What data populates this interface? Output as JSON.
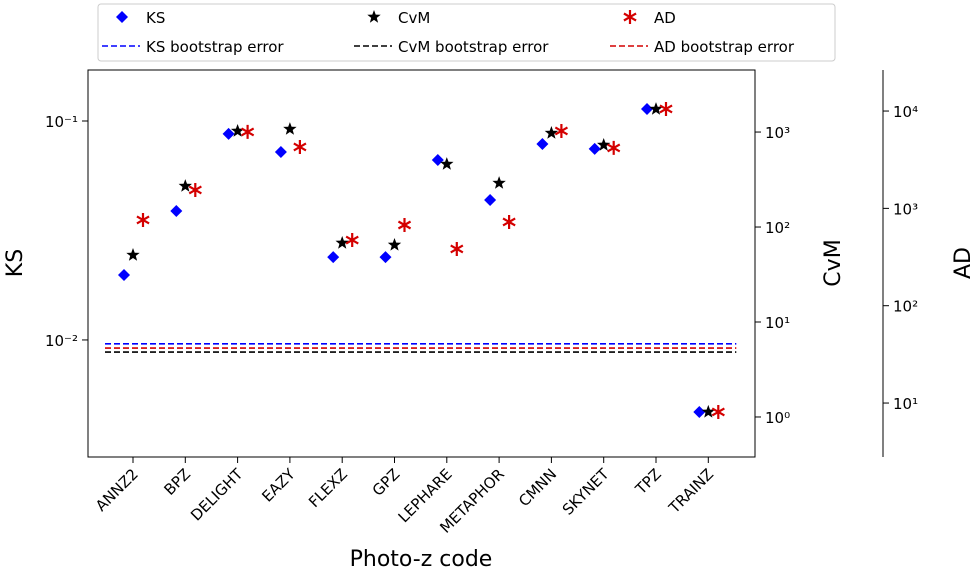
{
  "chart_data": {
    "type": "scatter",
    "log_scale": true,
    "xlabel": "Photo-z code",
    "ylabel": "KS",
    "y2label": "CvM",
    "y3label": "AD",
    "categories": [
      "ANNZ2",
      "BPZ",
      "DELIGHT",
      "EAZY",
      "FLEXZ",
      "GPZ",
      "LEPHARE",
      "METAPHOR",
      "CMNN",
      "SKYNET",
      "TPZ",
      "TRAINZ"
    ],
    "ylim": [
      0.00292,
      0.171
    ],
    "yticks": [
      {
        "value": 0.01,
        "label": "10⁻²"
      },
      {
        "value": 0.1,
        "label": "10⁻¹"
      }
    ],
    "y2lim": [
      0.379,
      4500
    ],
    "y2ticks": [
      {
        "value": 1,
        "label": "10⁰"
      },
      {
        "value": 10,
        "label": "10¹"
      },
      {
        "value": 100,
        "label": "10²"
      },
      {
        "value": 1000,
        "label": "10³"
      }
    ],
    "y3lim": [
      2.79,
      26400
    ],
    "y3ticks": [
      {
        "value": 10,
        "label": "10¹"
      },
      {
        "value": 100,
        "label": "10²"
      },
      {
        "value": 1000,
        "label": "10³"
      },
      {
        "value": 10000,
        "label": "10⁴"
      }
    ],
    "series": [
      {
        "name": "KS",
        "color": "#0000ff",
        "marker": "diamond",
        "axis": "y",
        "values": [
          0.0198,
          0.0388,
          0.0873,
          0.0722,
          0.0239,
          0.0239,
          0.0664,
          0.0436,
          0.0785,
          0.0746,
          0.1135,
          0.00469
        ],
        "bootstrap_error": {
          "name": "KS bootstrap error",
          "value": 0.0096
        }
      },
      {
        "name": "CvM",
        "color": "#000000",
        "marker": "star",
        "axis": "y2",
        "values": [
          50.7,
          270,
          1025,
          1075,
          67.9,
          64.7,
          460,
          290,
          976,
          730,
          1746,
          1.13
        ],
        "bootstrap_error": {
          "name": "CvM bootstrap error",
          "value": 4.83
        }
      },
      {
        "name": "AD",
        "color": "#d40000",
        "marker": "asterisk",
        "axis": "y3",
        "values": [
          760,
          1545,
          6100,
          4275,
          473,
          675,
          383,
          725,
          6240,
          4180,
          10500,
          8.1
        ],
        "bootstrap_error": {
          "name": "AD bootstrap error",
          "value": 36.7
        }
      }
    ]
  }
}
